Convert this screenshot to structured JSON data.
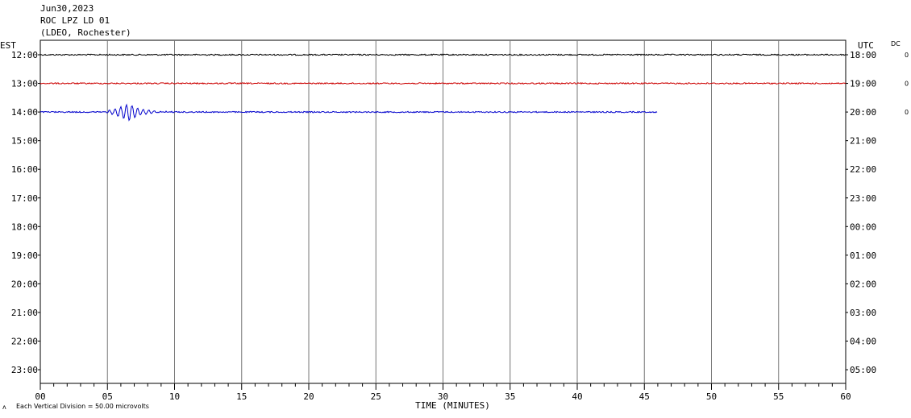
{
  "header": {
    "date": "Jun30,2023",
    "station": "ROC LPZ LD 01",
    "network": "(LDEO, Rochester)"
  },
  "chart_data": {
    "type": "line",
    "left_axis_title": "EST",
    "right_axis_title": "UTC",
    "dc_label": "DC",
    "xlabel": "TIME (MINUTES)",
    "xlim": [
      0,
      60
    ],
    "x_tick_labels": [
      "00",
      "05",
      "10",
      "15",
      "20",
      "25",
      "30",
      "35",
      "40",
      "45",
      "50",
      "55",
      "60"
    ],
    "rows_est": [
      "12:00",
      "13:00",
      "14:00",
      "15:00",
      "16:00",
      "17:00",
      "18:00",
      "19:00",
      "20:00",
      "21:00",
      "22:00",
      "23:00"
    ],
    "rows_utc": [
      "18:00",
      "19:00",
      "20:00",
      "21:00",
      "22:00",
      "23:00",
      "00:00",
      "01:00",
      "02:00",
      "03:00",
      "04:00",
      "05:00"
    ],
    "dc_values": [
      "0",
      "0",
      "0"
    ],
    "footer_note": "Each Vertical Division =   50.00 microvolts",
    "series": [
      {
        "row": 0,
        "color": "#000000",
        "end_minute": 60,
        "event": null
      },
      {
        "row": 1,
        "color": "#cc0000",
        "end_minute": 60,
        "event": null
      },
      {
        "row": 2,
        "color": "#0000cc",
        "end_minute": 46,
        "event": {
          "start_minute": 4,
          "peak_minute": 6.6,
          "end_minute": 11
        }
      }
    ]
  }
}
